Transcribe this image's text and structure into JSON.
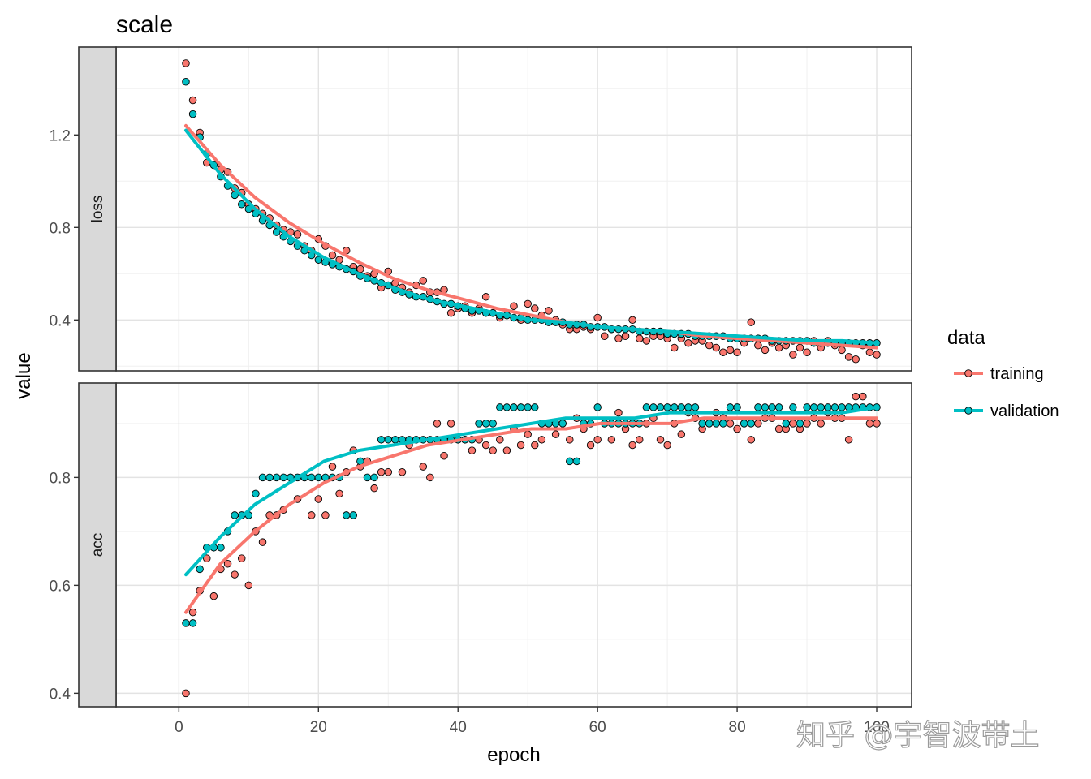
{
  "chart_data": {
    "type": "scatter",
    "title": "scale",
    "xlabel": "epoch",
    "ylabel": "value",
    "x_ticks": [
      0,
      20,
      40,
      60,
      80,
      100
    ],
    "xlim": [
      -9,
      105
    ],
    "legend": {
      "title": "data",
      "position": "right",
      "entries": [
        {
          "name": "training",
          "color": "#F8766D"
        },
        {
          "name": "validation",
          "color": "#00BFC4"
        }
      ]
    },
    "grid": true,
    "panels": [
      {
        "strip": "loss",
        "ylim": [
          0.18,
          1.58
        ],
        "y_ticks": [
          0.4,
          0.8,
          1.2
        ],
        "series": [
          {
            "name": "training",
            "color": "#F8766D",
            "values": [
              1.51,
              1.35,
              1.21,
              1.08,
              1.07,
              1.05,
              1.04,
              0.97,
              0.95,
              0.9,
              0.88,
              0.86,
              0.84,
              0.81,
              0.79,
              0.78,
              0.77,
              0.72,
              0.7,
              0.75,
              0.72,
              0.68,
              0.66,
              0.7,
              0.63,
              0.62,
              0.59,
              0.6,
              0.54,
              0.61,
              0.56,
              0.54,
              0.52,
              0.55,
              0.57,
              0.52,
              0.52,
              0.53,
              0.43,
              0.45,
              0.46,
              0.43,
              0.45,
              0.5,
              0.43,
              0.41,
              0.42,
              0.46,
              0.4,
              0.47,
              0.45,
              0.42,
              0.44,
              0.4,
              0.38,
              0.36,
              0.36,
              0.37,
              0.36,
              0.41,
              0.33,
              0.36,
              0.32,
              0.33,
              0.4,
              0.32,
              0.31,
              0.33,
              0.33,
              0.32,
              0.28,
              0.32,
              0.3,
              0.31,
              0.31,
              0.29,
              0.28,
              0.26,
              0.27,
              0.26,
              0.3,
              0.39,
              0.29,
              0.27,
              0.3,
              0.28,
              0.29,
              0.25,
              0.28,
              0.26,
              0.31,
              0.28,
              0.31,
              0.29,
              0.27,
              0.24,
              0.23,
              0.29,
              0.26,
              0.25
            ],
            "trend": [
              1.24,
              1.07,
              0.93,
              0.82,
              0.73,
              0.65,
              0.58,
              0.53,
              0.49,
              0.45,
              0.42,
              0.39,
              0.37,
              0.36,
              0.35,
              0.33,
              0.32,
              0.31,
              0.3,
              0.29,
              0.28
            ]
          },
          {
            "name": "validation",
            "color": "#00BFC4",
            "values": [
              1.43,
              1.29,
              1.19,
              1.12,
              1.07,
              1.02,
              0.98,
              0.94,
              0.9,
              0.88,
              0.86,
              0.83,
              0.81,
              0.78,
              0.76,
              0.74,
              0.72,
              0.7,
              0.68,
              0.66,
              0.65,
              0.64,
              0.63,
              0.62,
              0.61,
              0.59,
              0.58,
              0.57,
              0.56,
              0.55,
              0.53,
              0.52,
              0.51,
              0.5,
              0.5,
              0.49,
              0.48,
              0.47,
              0.47,
              0.46,
              0.45,
              0.44,
              0.44,
              0.43,
              0.43,
              0.42,
              0.42,
              0.41,
              0.41,
              0.4,
              0.4,
              0.4,
              0.39,
              0.39,
              0.39,
              0.38,
              0.38,
              0.38,
              0.37,
              0.37,
              0.37,
              0.36,
              0.36,
              0.36,
              0.36,
              0.35,
              0.35,
              0.35,
              0.35,
              0.34,
              0.34,
              0.34,
              0.34,
              0.33,
              0.33,
              0.33,
              0.33,
              0.33,
              0.32,
              0.32,
              0.32,
              0.32,
              0.32,
              0.32,
              0.31,
              0.31,
              0.31,
              0.31,
              0.31,
              0.31,
              0.3,
              0.3,
              0.3,
              0.3,
              0.3,
              0.3,
              0.3,
              0.3,
              0.3,
              0.3
            ],
            "trend": [
              1.22,
              1.03,
              0.88,
              0.76,
              0.67,
              0.6,
              0.54,
              0.49,
              0.46,
              0.43,
              0.4,
              0.39,
              0.37,
              0.36,
              0.35,
              0.34,
              0.33,
              0.32,
              0.31,
              0.31,
              0.3
            ]
          }
        ]
      },
      {
        "strip": "acc",
        "ylim": [
          0.375,
          0.975
        ],
        "y_ticks": [
          0.4,
          0.6,
          0.8
        ],
        "series": [
          {
            "name": "training",
            "color": "#F8766D",
            "values": [
              0.4,
              0.55,
              0.59,
              0.65,
              0.58,
              0.63,
              0.64,
              0.62,
              0.65,
              0.6,
              0.7,
              0.68,
              0.73,
              0.73,
              0.74,
              0.8,
              0.76,
              0.8,
              0.73,
              0.76,
              0.73,
              0.82,
              0.77,
              0.81,
              0.85,
              0.82,
              0.83,
              0.78,
              0.81,
              0.81,
              0.87,
              0.81,
              0.86,
              0.87,
              0.82,
              0.8,
              0.9,
              0.84,
              0.9,
              0.87,
              0.87,
              0.85,
              0.87,
              0.86,
              0.85,
              0.87,
              0.85,
              0.89,
              0.86,
              0.88,
              0.86,
              0.87,
              0.9,
              0.88,
              0.9,
              0.87,
              0.91,
              0.89,
              0.86,
              0.87,
              0.9,
              0.87,
              0.92,
              0.89,
              0.86,
              0.87,
              0.9,
              0.91,
              0.87,
              0.86,
              0.9,
              0.88,
              0.92,
              0.91,
              0.89,
              0.9,
              0.92,
              0.91,
              0.9,
              0.89,
              0.9,
              0.87,
              0.9,
              0.91,
              0.91,
              0.89,
              0.89,
              0.9,
              0.89,
              0.9,
              0.91,
              0.9,
              0.92,
              0.91,
              0.91,
              0.87,
              0.95,
              0.95,
              0.9,
              0.9
            ],
            "trend": [
              0.55,
              0.64,
              0.7,
              0.75,
              0.79,
              0.82,
              0.84,
              0.86,
              0.87,
              0.88,
              0.89,
              0.89,
              0.9,
              0.9,
              0.9,
              0.91,
              0.91,
              0.91,
              0.91,
              0.91,
              0.91
            ]
          },
          {
            "name": "validation",
            "color": "#00BFC4",
            "values": [
              0.53,
              0.53,
              0.63,
              0.67,
              0.67,
              0.67,
              0.7,
              0.73,
              0.73,
              0.73,
              0.77,
              0.8,
              0.8,
              0.8,
              0.8,
              0.8,
              0.8,
              0.8,
              0.8,
              0.8,
              0.8,
              0.8,
              0.8,
              0.73,
              0.73,
              0.83,
              0.8,
              0.8,
              0.87,
              0.87,
              0.87,
              0.87,
              0.87,
              0.87,
              0.87,
              0.87,
              0.87,
              0.87,
              0.87,
              0.87,
              0.87,
              0.87,
              0.9,
              0.9,
              0.9,
              0.93,
              0.93,
              0.93,
              0.93,
              0.93,
              0.93,
              0.9,
              0.9,
              0.9,
              0.9,
              0.83,
              0.83,
              0.9,
              0.9,
              0.93,
              0.9,
              0.9,
              0.9,
              0.9,
              0.9,
              0.9,
              0.93,
              0.93,
              0.93,
              0.93,
              0.93,
              0.93,
              0.93,
              0.93,
              0.9,
              0.9,
              0.9,
              0.9,
              0.93,
              0.93,
              0.9,
              0.9,
              0.93,
              0.93,
              0.93,
              0.93,
              0.9,
              0.93,
              0.9,
              0.93,
              0.93,
              0.93,
              0.93,
              0.93,
              0.93,
              0.93,
              0.93,
              0.93,
              0.93,
              0.93
            ],
            "trend": [
              0.62,
              0.69,
              0.75,
              0.79,
              0.83,
              0.85,
              0.86,
              0.87,
              0.88,
              0.89,
              0.9,
              0.91,
              0.91,
              0.91,
              0.92,
              0.92,
              0.92,
              0.92,
              0.92,
              0.92,
              0.93
            ]
          }
        ]
      }
    ]
  },
  "watermark": "知乎 @宇智波带土"
}
